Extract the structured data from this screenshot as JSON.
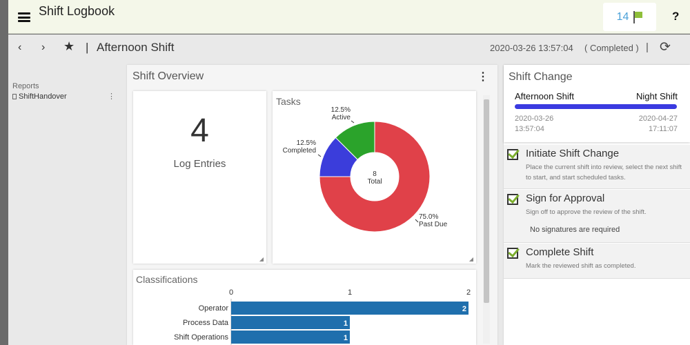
{
  "header": {
    "title": "Shift Logbook",
    "notification_count": "14",
    "help_label": "?"
  },
  "toolbar": {
    "back_label": "‹",
    "forward_label": "›",
    "separator": "|",
    "shift_name": "Afternoon Shift",
    "timestamp": "2020-03-26 13:57:04",
    "status": "( Completed )"
  },
  "sidebar": {
    "section_label": "Reports",
    "items": [
      {
        "label": "ShiftHandover"
      }
    ]
  },
  "overview": {
    "title": "Shift Overview",
    "log_entries": {
      "count": "4",
      "label": "Log Entries"
    },
    "tasks": {
      "title": "Tasks",
      "center_value": "8",
      "center_label": "Total"
    },
    "classifications": {
      "title": "Classifications"
    }
  },
  "chart_data": [
    {
      "type": "pie",
      "title": "Tasks",
      "donut": true,
      "total": 8,
      "categories": [
        "Past Due",
        "Completed",
        "Active"
      ],
      "values": [
        75.0,
        12.5,
        12.5
      ],
      "labels": [
        "75.0%",
        "12.5%",
        "12.5%"
      ],
      "colors": [
        "#e04149",
        "#3b3ddb",
        "#2ba32b"
      ]
    },
    {
      "type": "bar",
      "orientation": "horizontal",
      "title": "Classifications",
      "categories": [
        "Operator",
        "Process Data",
        "Shift Operations"
      ],
      "values": [
        2,
        1,
        1
      ],
      "xlim": [
        0,
        2
      ],
      "xticks": [
        "0",
        "1",
        "2"
      ],
      "color": "#1f6fad"
    }
  ],
  "shift_change": {
    "title": "Shift Change",
    "from_shift": "Afternoon Shift",
    "to_shift": "Night Shift",
    "from_date": "2020-03-26",
    "from_time": "13:57:04",
    "to_date": "2020-04-27",
    "to_time": "17:11:07",
    "steps": [
      {
        "title": "Initiate Shift Change",
        "description": "Place the current shift into review, select the next shift to start, and start scheduled tasks."
      },
      {
        "title": "Sign for Approval",
        "description": "Sign off to approve the review of the shift.",
        "extra": "No signatures are required"
      },
      {
        "title": "Complete Shift",
        "description": "Mark the reviewed shift as completed."
      }
    ]
  },
  "colors": {
    "accent": "#3a3ae0",
    "check": "#7cae2e",
    "header_bg": "#f4f7e9"
  }
}
